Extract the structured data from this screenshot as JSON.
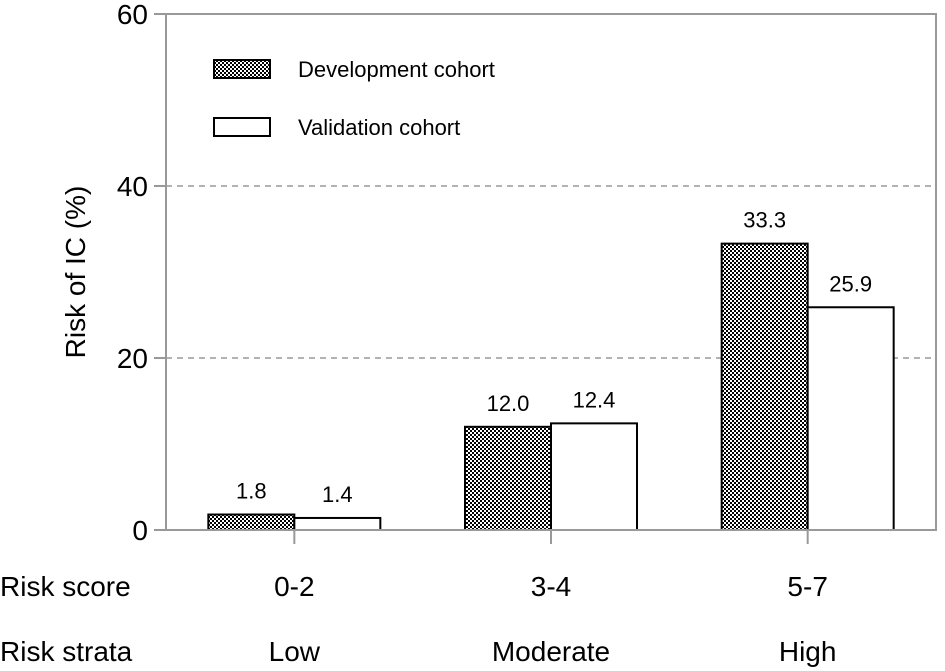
{
  "chart_data": {
    "type": "bar",
    "ylabel": "Risk of IC (%)",
    "ylim": [
      0,
      60
    ],
    "yticks": [
      0,
      20,
      40,
      60
    ],
    "gridlines": [
      20,
      40
    ],
    "categories": [
      "0-2",
      "3-4",
      "5-7"
    ],
    "strata": [
      "Low",
      "Moderate",
      "High"
    ],
    "row_titles": {
      "score": "Risk score",
      "strata": "Risk strata"
    },
    "series": [
      {
        "name": "Development cohort",
        "pattern": "checkered",
        "values": [
          1.8,
          12.0,
          33.3
        ],
        "labels": [
          "1.8",
          "12.0",
          "33.3"
        ]
      },
      {
        "name": "Validation cohort",
        "pattern": "white",
        "values": [
          1.4,
          12.4,
          25.9
        ],
        "labels": [
          "1.4",
          "12.4",
          "25.9"
        ]
      }
    ],
    "legend": {
      "position": "top-left"
    }
  }
}
